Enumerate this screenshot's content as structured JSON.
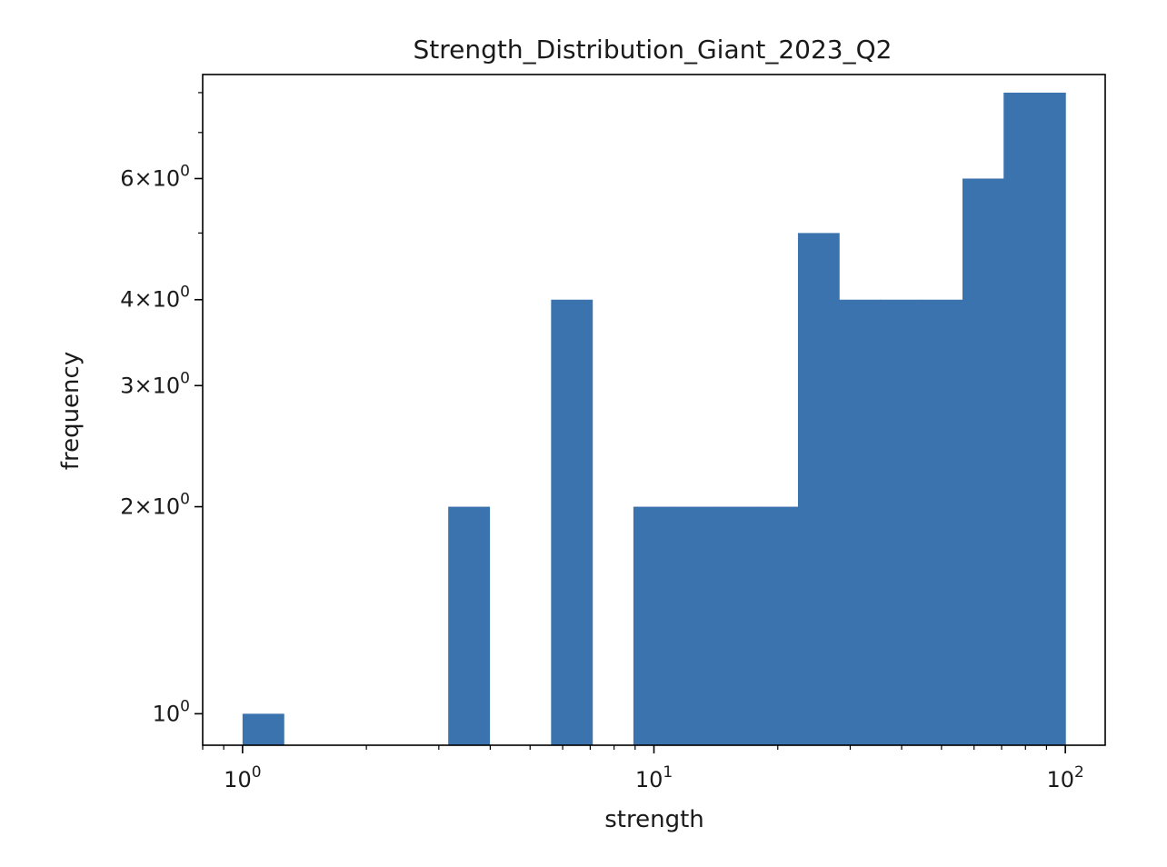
{
  "chart_data": {
    "type": "bar",
    "subtype": "histogram",
    "title": "Strength_Distribution_Giant_2023_Q2",
    "xlabel": "strength",
    "ylabel": "frequency",
    "xscale": "log",
    "yscale": "log",
    "xlim": [
      0.8,
      125
    ],
    "ylim": [
      0.9,
      8.5
    ],
    "bar_color": "#3a73ad",
    "bins": [
      {
        "x0": 1.0,
        "x1": 1.259,
        "count": 1
      },
      {
        "x0": 3.162,
        "x1": 3.981,
        "count": 2
      },
      {
        "x0": 5.623,
        "x1": 7.079,
        "count": 4
      },
      {
        "x0": 8.913,
        "x1": 11.22,
        "count": 2
      },
      {
        "x0": 11.22,
        "x1": 14.13,
        "count": 2
      },
      {
        "x0": 14.13,
        "x1": 17.78,
        "count": 2
      },
      {
        "x0": 17.78,
        "x1": 22.39,
        "count": 2
      },
      {
        "x0": 22.39,
        "x1": 28.18,
        "count": 5
      },
      {
        "x0": 28.18,
        "x1": 35.48,
        "count": 4
      },
      {
        "x0": 35.48,
        "x1": 44.67,
        "count": 4
      },
      {
        "x0": 44.67,
        "x1": 56.23,
        "count": 4
      },
      {
        "x0": 56.23,
        "x1": 70.79,
        "count": 6
      },
      {
        "x0": 70.79,
        "x1": 89.13,
        "count": 8
      },
      {
        "x0": 89.13,
        "x1": 100.0,
        "count": 8
      }
    ],
    "x_ticks": [
      {
        "value": 1,
        "base": "10",
        "exp": "0"
      },
      {
        "value": 10,
        "base": "10",
        "exp": "1"
      },
      {
        "value": 100,
        "base": "10",
        "exp": "2"
      }
    ],
    "y_ticks": [
      {
        "value": 1,
        "mant": "",
        "base": "10",
        "exp": "0"
      },
      {
        "value": 2,
        "mant": "2×",
        "base": "10",
        "exp": "0"
      },
      {
        "value": 3,
        "mant": "3×",
        "base": "10",
        "exp": "0"
      },
      {
        "value": 4,
        "mant": "4×",
        "base": "10",
        "exp": "0"
      },
      {
        "value": 6,
        "mant": "6×",
        "base": "10",
        "exp": "0"
      }
    ],
    "y_minor_ticks": [
      5,
      7,
      8
    ]
  }
}
